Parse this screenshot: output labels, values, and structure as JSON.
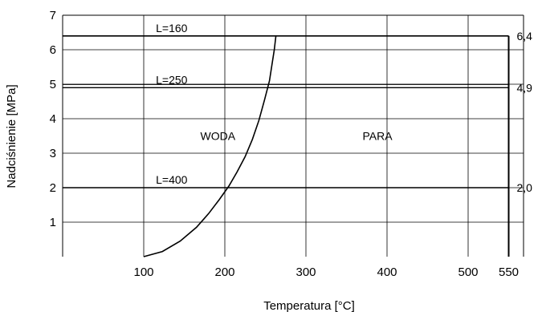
{
  "chart_data": {
    "type": "line",
    "title": "",
    "xlabel": "Temperatura [°C]",
    "ylabel": "Nadciśnienie [MPa]",
    "xlim": [
      0,
      550
    ],
    "ylim": [
      0,
      7
    ],
    "x_ticks": [
      100,
      200,
      300,
      400,
      500,
      550
    ],
    "y_ticks": [
      1,
      2,
      3,
      4,
      5,
      6,
      7
    ],
    "grid": true,
    "series": [
      {
        "name": "",
        "x": [
          100,
          123,
          145,
          165,
          180,
          193,
          205,
          215,
          225,
          234,
          242,
          249,
          255,
          258,
          261,
          263
        ],
        "y": [
          0.0,
          0.15,
          0.45,
          0.85,
          1.25,
          1.65,
          2.05,
          2.45,
          2.9,
          3.4,
          3.95,
          4.55,
          5.1,
          5.55,
          6.0,
          6.4
        ]
      }
    ],
    "limit_lines": [
      {
        "label": "L=160",
        "y": 6.4,
        "value_label": "6,4"
      },
      {
        "label": "L=250",
        "y": 4.9,
        "value_label": "4,9"
      },
      {
        "label": "L=400",
        "y": 2.0,
        "value_label": "2,0"
      }
    ],
    "region_labels": [
      {
        "text": "WODA",
        "x": 150,
        "y": 3.5
      },
      {
        "text": "PARA",
        "x": 350,
        "y": 3.5
      }
    ]
  }
}
